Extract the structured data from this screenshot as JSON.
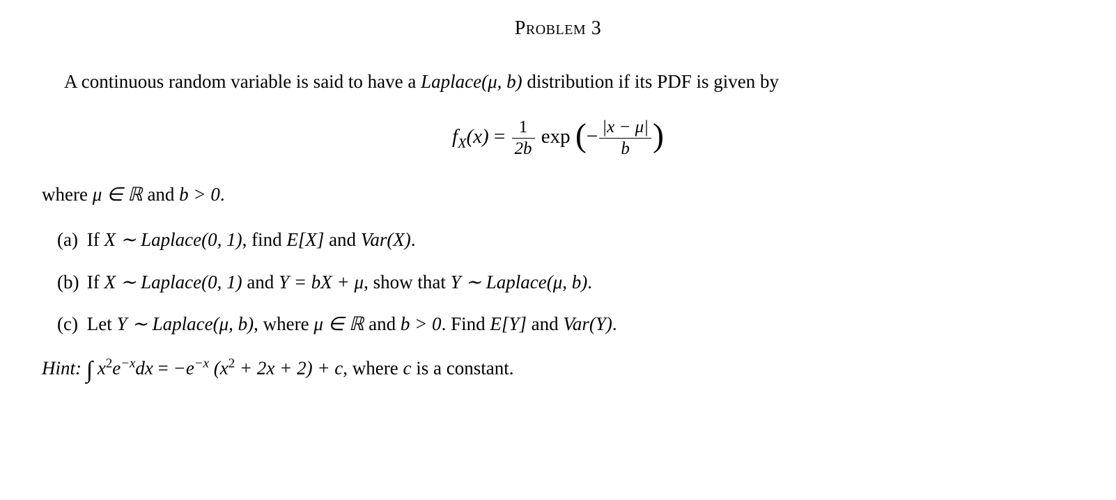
{
  "document": {
    "title": "Problem 3",
    "title_style": "smallcaps",
    "font_family": "Times New Roman",
    "font_size_body": 27,
    "font_size_title": 28,
    "font_size_formula": 29,
    "text_color": "#000000",
    "background_color": "#ffffff",
    "intro_text_before": "A continuous random variable is said to have a ",
    "intro_distribution": "Laplace(μ, b)",
    "intro_text_after": " distribution if its PDF is given by",
    "formula": {
      "lhs_function": "f",
      "lhs_subscript": "X",
      "lhs_arg": "(x)",
      "equals": " = ",
      "coef_num": "1",
      "coef_den": "2b",
      "exp_label": " exp ",
      "exp_arg_prefix": "−",
      "exp_frac_num": "|x − μ|",
      "exp_frac_den": "b"
    },
    "where_before": "where ",
    "where_mu": "μ ∈ ℝ",
    "where_and": " and ",
    "where_b": "b > 0",
    "where_period": ".",
    "parts": [
      {
        "label": "(a)",
        "before": "If ",
        "dist_expr": "X ∼ Laplace(0, 1)",
        "middle": ", find ",
        "expr1": "E[X]",
        "conj": " and ",
        "expr2": "Var(X)",
        "end": "."
      },
      {
        "label": "(b)",
        "before": "If ",
        "dist_expr": "X ∼ Laplace(0, 1)",
        "middle1": " and ",
        "yexpr": "Y = bX + μ",
        "middle2": ", show that ",
        "dist_expr2": "Y ∼ Laplace(μ, b)",
        "end": "."
      },
      {
        "label": "(c)",
        "before": "Let ",
        "dist_expr": "Y ∼ Laplace(μ, b)",
        "middle1": ", where ",
        "cond": "μ ∈ ℝ",
        "conj1": " and ",
        "cond2": "b > 0",
        "middle2": ". Find ",
        "expr1": "E[Y]",
        "conj2": " and ",
        "expr2": "Var(Y)",
        "end": "."
      }
    ],
    "hint": {
      "label": "Hint:",
      "integral": "∫",
      "integrand_base": "x",
      "integrand_sup1": "2",
      "integrand_e": "e",
      "integrand_sup2": "−x",
      "integrand_dx": "dx",
      "equals": " = ",
      "rhs_neg": "−e",
      "rhs_sup": "−x",
      "rhs_paren": " (x",
      "rhs_sup2": "2",
      "rhs_rest": " + 2x + 2) + c",
      "tail": ", where ",
      "c_var": "c",
      "tail2": " is a constant."
    }
  }
}
